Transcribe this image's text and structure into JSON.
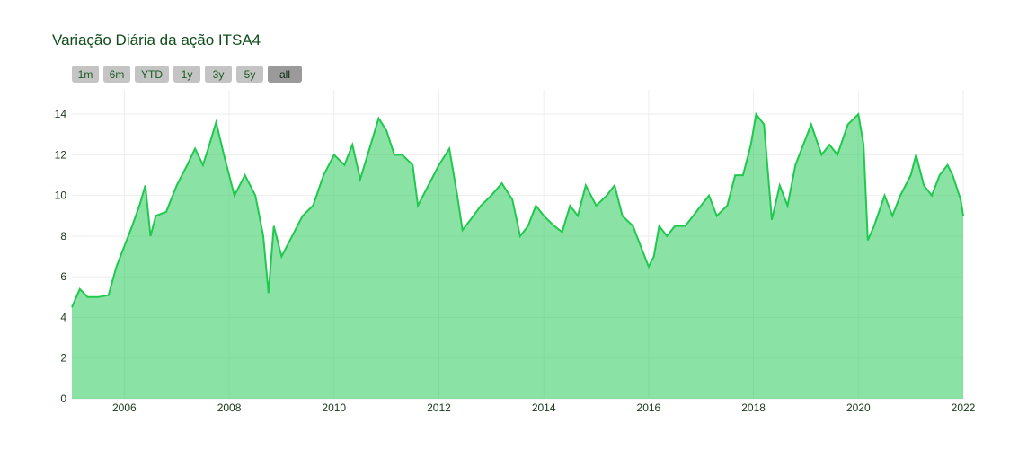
{
  "chart_data": {
    "type": "area",
    "title": "Variação Diária da ação ITSA4",
    "buttons": [
      "1m",
      "6m",
      "YTD",
      "1y",
      "3y",
      "5y",
      "all"
    ],
    "active_button": "all",
    "series": [
      {
        "name": "ITSA4",
        "color": "#1fc94e",
        "fill": "rgba(30,200,80,0.52)",
        "x": [
          2005.0,
          2005.15,
          2005.3,
          2005.5,
          2005.7,
          2005.85,
          2006.0,
          2006.15,
          2006.3,
          2006.4,
          2006.5,
          2006.6,
          2006.8,
          2007.0,
          2007.2,
          2007.35,
          2007.5,
          2007.6,
          2007.75,
          2007.9,
          2008.1,
          2008.3,
          2008.5,
          2008.65,
          2008.75,
          2008.85,
          2009.0,
          2009.2,
          2009.4,
          2009.6,
          2009.8,
          2010.0,
          2010.2,
          2010.35,
          2010.5,
          2010.7,
          2010.85,
          2011.0,
          2011.15,
          2011.3,
          2011.5,
          2011.6,
          2011.8,
          2012.0,
          2012.2,
          2012.35,
          2012.45,
          2012.6,
          2012.8,
          2013.0,
          2013.2,
          2013.4,
          2013.55,
          2013.7,
          2013.85,
          2014.0,
          2014.2,
          2014.35,
          2014.5,
          2014.65,
          2014.8,
          2015.0,
          2015.2,
          2015.35,
          2015.5,
          2015.7,
          2015.85,
          2016.0,
          2016.1,
          2016.2,
          2016.35,
          2016.5,
          2016.7,
          2016.85,
          2017.0,
          2017.15,
          2017.3,
          2017.5,
          2017.65,
          2017.8,
          2017.95,
          2018.05,
          2018.2,
          2018.35,
          2018.5,
          2018.65,
          2018.8,
          2018.95,
          2019.1,
          2019.3,
          2019.45,
          2019.6,
          2019.8,
          2020.0,
          2020.1,
          2020.18,
          2020.3,
          2020.5,
          2020.65,
          2020.8,
          2021.0,
          2021.1,
          2021.25,
          2021.4,
          2021.55,
          2021.7,
          2021.8,
          2021.95,
          2022.0
        ],
        "values": [
          4.5,
          5.4,
          5.0,
          5.0,
          5.1,
          6.5,
          7.5,
          8.5,
          9.6,
          10.5,
          8.0,
          9.0,
          9.2,
          10.5,
          11.5,
          12.3,
          11.5,
          12.3,
          13.6,
          12.0,
          10.0,
          11.0,
          10.0,
          8.0,
          5.2,
          8.5,
          7.0,
          8.0,
          9.0,
          9.5,
          11.0,
          12.0,
          11.5,
          12.5,
          10.8,
          12.5,
          13.8,
          13.2,
          12.0,
          12.0,
          11.5,
          9.5,
          10.5,
          11.5,
          12.3,
          10.0,
          8.3,
          8.8,
          9.5,
          10.0,
          10.6,
          9.8,
          8.0,
          8.5,
          9.5,
          9.0,
          8.5,
          8.2,
          9.5,
          9.0,
          10.5,
          9.5,
          10.0,
          10.5,
          9.0,
          8.5,
          7.5,
          6.5,
          7.0,
          8.5,
          8.0,
          8.5,
          8.5,
          9.0,
          9.5,
          10.0,
          9.0,
          9.5,
          11.0,
          11.0,
          12.5,
          14.0,
          13.5,
          8.8,
          10.5,
          9.5,
          11.5,
          12.5,
          13.5,
          12.0,
          12.5,
          12.0,
          13.5,
          14.0,
          12.5,
          7.8,
          8.5,
          10.0,
          9.0,
          10.0,
          11.0,
          12.0,
          10.5,
          10.0,
          11.0,
          11.5,
          11.0,
          9.8,
          9.0
        ]
      }
    ],
    "xlim": [
      2005,
      2022
    ],
    "xticks": [
      2006,
      2008,
      2010,
      2012,
      2014,
      2016,
      2018,
      2020,
      2022
    ],
    "ylim": [
      0,
      15.2
    ],
    "yticks": [
      0,
      2,
      4,
      6,
      8,
      10,
      12,
      14
    ],
    "grid": true
  }
}
